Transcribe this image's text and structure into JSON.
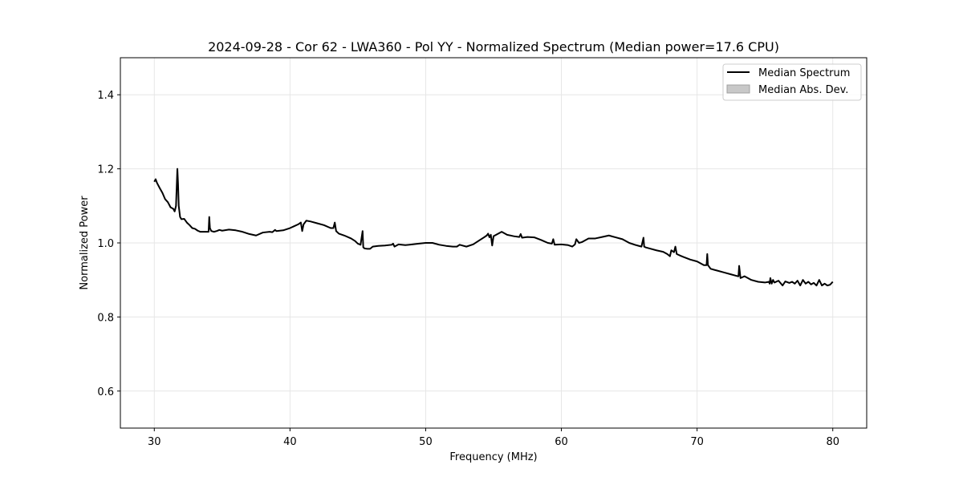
{
  "chart_data": {
    "type": "line",
    "title": "2024-09-28 - Cor 62 - LWA360 - Pol YY - Normalized Spectrum (Median power=17.6 CPU)",
    "xlabel": "Frequency (MHz)",
    "ylabel": "Normalized Power",
    "xlim": [
      27.5,
      82.5
    ],
    "ylim": [
      0.5,
      1.5
    ],
    "xticks": [
      30,
      40,
      50,
      60,
      70,
      80
    ],
    "xtick_labels": [
      "30",
      "40",
      "50",
      "60",
      "70",
      "80"
    ],
    "yticks": [
      0.6,
      0.8,
      1.0,
      1.2,
      1.4
    ],
    "ytick_labels": [
      "0.6",
      "0.8",
      "1.0",
      "1.2",
      "1.4"
    ],
    "grid": true,
    "legend_position": "top-right",
    "legend": [
      {
        "label": "Median Spectrum",
        "kind": "line",
        "color": "#000000"
      },
      {
        "label": "Median Abs. Dev.",
        "kind": "patch",
        "color": "#c8c8c8"
      }
    ],
    "series": [
      {
        "name": "Median Spectrum",
        "color": "#000000",
        "x": [
          30.0,
          30.1,
          30.2,
          30.4,
          30.6,
          30.8,
          31.0,
          31.2,
          31.4,
          31.5,
          31.6,
          31.7,
          31.75,
          31.8,
          31.9,
          32.0,
          32.2,
          32.4,
          32.6,
          32.8,
          33.0,
          33.2,
          33.4,
          33.6,
          33.8,
          34.0,
          34.05,
          34.1,
          34.2,
          34.4,
          34.6,
          34.8,
          35.0,
          35.5,
          36.0,
          36.5,
          37.0,
          37.5,
          38.0,
          38.5,
          38.7,
          38.9,
          39.0,
          39.5,
          40.0,
          40.3,
          40.6,
          40.8,
          40.9,
          41.0,
          41.2,
          41.5,
          42.0,
          42.5,
          43.0,
          43.2,
          43.3,
          43.4,
          43.6,
          44.0,
          44.5,
          44.8,
          45.0,
          45.2,
          45.35,
          45.4,
          45.5,
          45.7,
          45.9,
          46.1,
          46.5,
          47.0,
          47.5,
          47.6,
          47.7,
          48.0,
          48.5,
          49.0,
          49.5,
          50.0,
          50.5,
          51.0,
          51.5,
          52.0,
          52.3,
          52.5,
          53.0,
          53.5,
          54.0,
          54.3,
          54.5,
          54.6,
          54.7,
          54.8,
          54.9,
          55.0,
          55.3,
          55.6,
          56.0,
          56.5,
          56.9,
          57.0,
          57.1,
          57.5,
          58.0,
          58.5,
          59.0,
          59.3,
          59.4,
          59.5,
          60.0,
          60.5,
          60.8,
          61.0,
          61.1,
          61.3,
          61.5,
          62.0,
          62.5,
          63.0,
          63.5,
          64.0,
          64.5,
          65.0,
          65.5,
          65.9,
          66.05,
          66.1,
          66.2,
          66.5,
          67.0,
          67.5,
          67.8,
          68.0,
          68.1,
          68.3,
          68.4,
          68.5,
          68.8,
          69.0,
          69.5,
          70.0,
          70.5,
          70.7,
          70.75,
          70.8,
          71.0,
          71.5,
          72.0,
          72.5,
          73.0,
          73.05,
          73.1,
          73.2,
          73.5,
          74.0,
          74.5,
          75.0,
          75.3,
          75.35,
          75.4,
          75.5,
          75.6,
          75.7,
          76.0,
          76.3,
          76.5,
          76.8,
          77.0,
          77.2,
          77.4,
          77.6,
          77.8,
          78.0,
          78.2,
          78.4,
          78.6,
          78.8,
          79.0,
          79.2,
          79.4,
          79.6,
          79.8,
          80.0
        ],
        "values": [
          1.165,
          1.172,
          1.162,
          1.148,
          1.135,
          1.118,
          1.11,
          1.096,
          1.092,
          1.085,
          1.1,
          1.2,
          1.16,
          1.1,
          1.07,
          1.064,
          1.065,
          1.055,
          1.048,
          1.04,
          1.038,
          1.033,
          1.03,
          1.03,
          1.03,
          1.03,
          1.07,
          1.04,
          1.032,
          1.03,
          1.032,
          1.035,
          1.033,
          1.036,
          1.034,
          1.03,
          1.024,
          1.02,
          1.028,
          1.03,
          1.029,
          1.035,
          1.032,
          1.034,
          1.04,
          1.045,
          1.05,
          1.055,
          1.032,
          1.05,
          1.06,
          1.058,
          1.053,
          1.048,
          1.04,
          1.04,
          1.055,
          1.032,
          1.025,
          1.02,
          1.012,
          1.005,
          0.998,
          0.995,
          1.032,
          0.988,
          0.985,
          0.984,
          0.984,
          0.99,
          0.992,
          0.993,
          0.995,
          0.998,
          0.99,
          0.996,
          0.994,
          0.996,
          0.998,
          1.0,
          1.0,
          0.995,
          0.992,
          0.99,
          0.99,
          0.995,
          0.99,
          0.996,
          1.008,
          1.015,
          1.02,
          1.025,
          1.015,
          1.022,
          0.993,
          1.018,
          1.024,
          1.03,
          1.022,
          1.018,
          1.016,
          1.024,
          1.014,
          1.016,
          1.015,
          1.008,
          1.0,
          0.998,
          1.01,
          0.995,
          0.996,
          0.994,
          0.99,
          0.996,
          1.01,
          1.0,
          1.002,
          1.012,
          1.012,
          1.016,
          1.02,
          1.015,
          1.01,
          1.0,
          0.994,
          0.99,
          1.014,
          0.99,
          0.988,
          0.985,
          0.98,
          0.976,
          0.97,
          0.964,
          0.98,
          0.975,
          0.99,
          0.97,
          0.965,
          0.962,
          0.955,
          0.95,
          0.94,
          0.94,
          0.97,
          0.94,
          0.93,
          0.925,
          0.92,
          0.915,
          0.91,
          0.91,
          0.938,
          0.905,
          0.91,
          0.9,
          0.895,
          0.893,
          0.895,
          0.89,
          0.905,
          0.89,
          0.9,
          0.893,
          0.898,
          0.885,
          0.896,
          0.892,
          0.895,
          0.89,
          0.898,
          0.885,
          0.9,
          0.89,
          0.895,
          0.888,
          0.892,
          0.885,
          0.9,
          0.885,
          0.89,
          0.885,
          0.887,
          0.895
        ]
      }
    ]
  }
}
